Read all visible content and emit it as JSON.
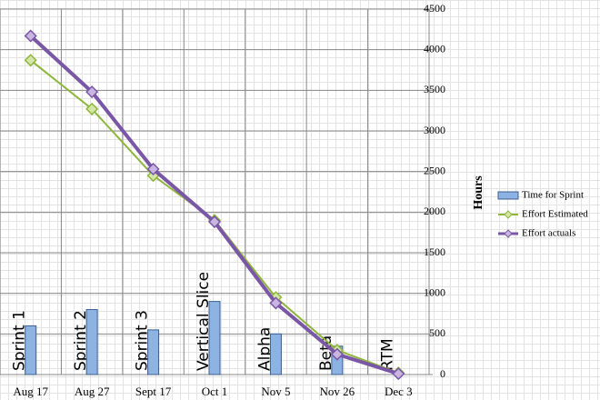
{
  "chart_data": {
    "type": "combo",
    "y_axis_title": "Hours",
    "categories": [
      "Aug 17",
      "Aug 27",
      "Sept 17",
      "Oct 1",
      "Nov 5",
      "Nov 26",
      "Dec 3"
    ],
    "bar_labels": [
      "Sprint 1",
      "Sprint 2",
      "Sprint 3",
      "Vertical Slice",
      "Alpha",
      "Beta",
      "RTM"
    ],
    "series": [
      {
        "name": "Time for Sprint",
        "type": "bar",
        "color": "#8db3e2",
        "values": [
          600,
          800,
          550,
          900,
          500,
          350,
          null
        ]
      },
      {
        "name": "Effort Estimated",
        "type": "line",
        "color": "#8fb63c",
        "values": [
          3870,
          3270,
          2450,
          1900,
          950,
          300,
          20
        ]
      },
      {
        "name": "Effort actuals",
        "type": "line",
        "color": "#7a56a6",
        "values": [
          4170,
          3480,
          2530,
          1880,
          880,
          250,
          10
        ]
      }
    ],
    "ylim": [
      0,
      4500
    ],
    "yticks": [
      0,
      500,
      1000,
      1500,
      2000,
      2500,
      3000,
      3500,
      4000,
      4500
    ],
    "grid": true,
    "legend": "right"
  }
}
